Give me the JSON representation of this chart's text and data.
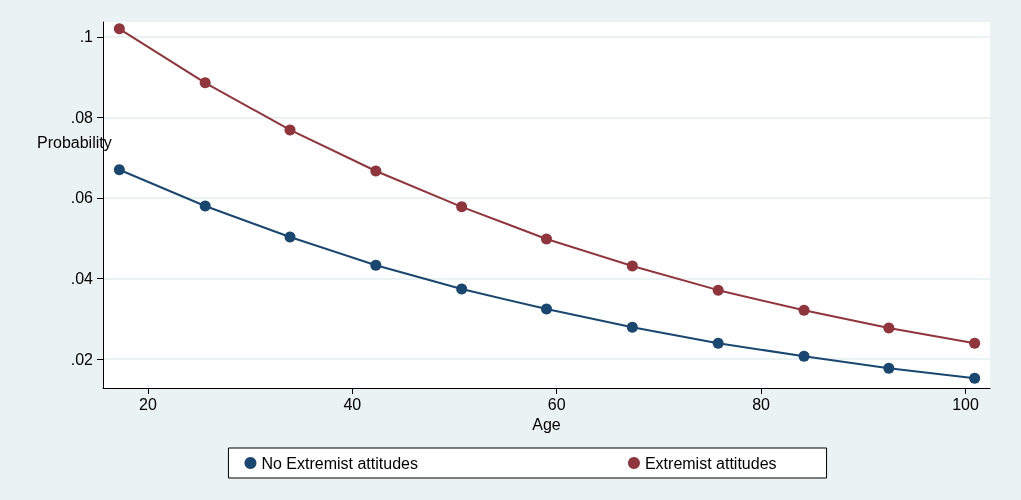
{
  "chart_data": {
    "type": "line",
    "xlabel": "Age",
    "ylabel": "Probability",
    "series": [
      {
        "name": "No Extremist attitudes",
        "color": "#1a476f",
        "x": [
          17.2,
          25.6,
          33.9,
          42.3,
          50.7,
          59.0,
          67.4,
          75.8,
          84.2,
          92.5,
          100.9
        ],
        "values": [
          0.067,
          0.058,
          0.0503,
          0.0433,
          0.0374,
          0.0324,
          0.0279,
          0.0239,
          0.0207,
          0.0177,
          0.0152
        ]
      },
      {
        "name": "Extremist attitudes",
        "color": "#90353b",
        "x": [
          17.2,
          25.6,
          33.9,
          42.3,
          50.7,
          59.0,
          67.4,
          75.8,
          84.2,
          92.5,
          100.9
        ],
        "values": [
          0.102,
          0.0886,
          0.0769,
          0.0667,
          0.0578,
          0.0498,
          0.0431,
          0.0371,
          0.0321,
          0.0277,
          0.0239
        ]
      }
    ],
    "xlim": [
      15.6,
      102.4
    ],
    "xticks": [
      20,
      40,
      60,
      80,
      100
    ],
    "ylim": [
      0.0128,
      0.1037
    ],
    "yticks": [
      {
        "value": 0.02,
        "label": ".02"
      },
      {
        "value": 0.04,
        "label": ".04"
      },
      {
        "value": 0.06,
        "label": ".06"
      },
      {
        "value": 0.08,
        "label": ".08"
      },
      {
        "value": 0.1,
        "label": ".1"
      }
    ],
    "grid": "y",
    "legend": "bottom",
    "marker": "circle",
    "line_style": "solid"
  }
}
